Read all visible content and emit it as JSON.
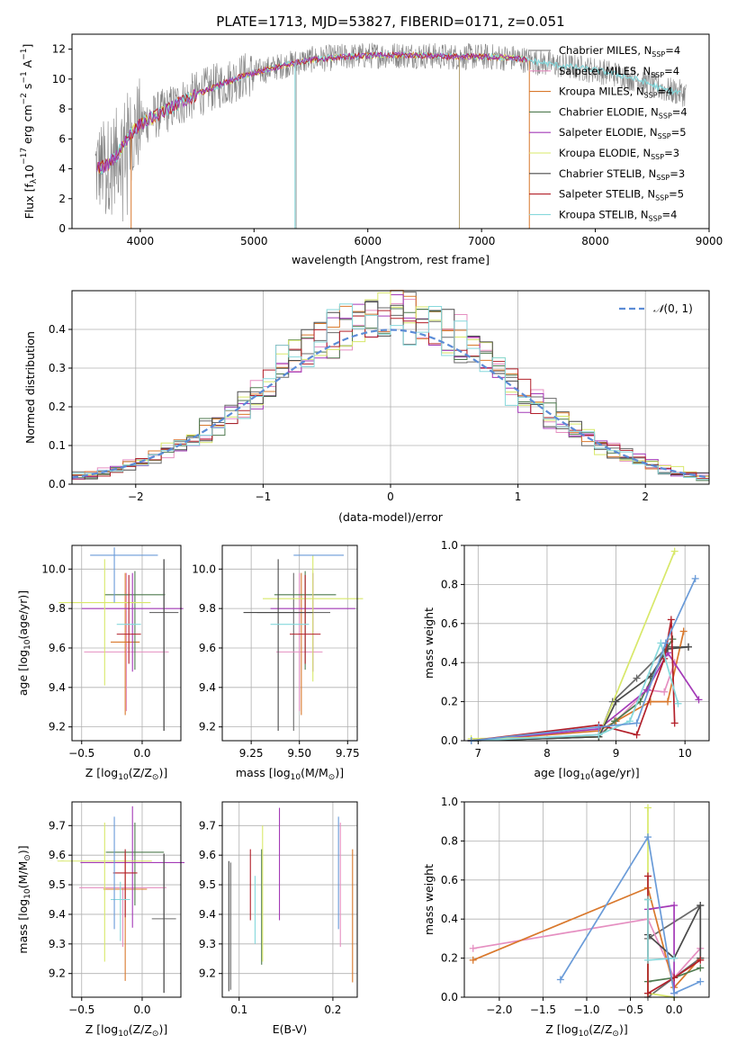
{
  "figure_title": "PLATE=1713, MJD=53827, FIBERID=0171, z=0.051",
  "colors": [
    "#6a6a6a",
    "#e58fc1",
    "#d9782c",
    "#4f7a4f",
    "#a43ab7",
    "#d8e86a",
    "#4a4a4a",
    "#b3202a",
    "#86d8dc"
  ],
  "stelib_colors": [
    "#6a6a6a",
    "#e58fc1",
    "#d9782c",
    "#4f7a4f",
    "#a43ab7",
    "#d8e86a",
    "#4a4a4a",
    "#b3202a",
    "#86d8dc"
  ],
  "chart_data": [
    {
      "id": "spectrum",
      "type": "line",
      "xlabel": "wavelength [Angstrom, rest frame]",
      "ylabel": "Flux [f$_\\lambda$10$^{-17}$ erg cm$^{-2}$ s$^{-1}$ A$^{-1}$]",
      "ylabel_parts": [
        "Flux [f",
        "λ",
        "10",
        "−17",
        " erg cm",
        "−2",
        " s",
        "−1",
        " A",
        "−1",
        "]"
      ],
      "xlim": [
        3400,
        9000
      ],
      "ylim": [
        0,
        13
      ],
      "xticks": [
        4000,
        5000,
        6000,
        7000,
        8000,
        9000
      ],
      "yticks": [
        0,
        2,
        4,
        6,
        8,
        10,
        12
      ],
      "grid": false,
      "legend": "right",
      "legend_entries": [
        {
          "lib": "Chabrier MILES, N",
          "sub": "SSP",
          "n": "=4"
        },
        {
          "lib": "Salpeter MILES, N",
          "sub": "SSP",
          "n": "=4"
        },
        {
          "lib": "Kroupa MILES, N",
          "sub": "SSP",
          "n": "=4"
        },
        {
          "lib": "Chabrier ELODIE, N",
          "sub": "SSP",
          "n": "=4"
        },
        {
          "lib": "Salpeter ELODIE, N",
          "sub": "SSP",
          "n": "=5"
        },
        {
          "lib": "Kroupa ELODIE, N",
          "sub": "SSP",
          "n": "=3"
        },
        {
          "lib": "Chabrier STELIB, N",
          "sub": "SSP",
          "n": "=3"
        },
        {
          "lib": "Salpeter STELIB, N",
          "sub": "SSP",
          "n": "=5"
        },
        {
          "lib": "Kroupa STELIB, N",
          "sub": "SSP",
          "n": "=4"
        }
      ],
      "data_trend": {
        "x": [
          3600,
          3700,
          3800,
          3900,
          4000,
          4100,
          4300,
          4500,
          4700,
          4900,
          5100,
          5300,
          5500,
          5800,
          6100,
          6400,
          6700,
          7000,
          7300,
          7600,
          7800,
          8000,
          8200,
          8400,
          8600,
          8800
        ],
        "y": [
          4.0,
          4.2,
          5.0,
          6.2,
          7.0,
          7.4,
          8.2,
          9.0,
          9.6,
          10.2,
          10.6,
          11.0,
          11.3,
          11.5,
          11.6,
          11.6,
          11.5,
          11.5,
          11.4,
          11.0,
          10.8,
          10.6,
          10.3,
          9.9,
          9.3,
          9.0
        ]
      }
    },
    {
      "id": "residuals",
      "type": "histogram",
      "xlabel": "(data-model)/error",
      "ylabel": "Normed distribution",
      "xlim": [
        -2.5,
        2.5
      ],
      "ylim": [
        0,
        0.5
      ],
      "xticks": [
        -2,
        -1,
        0,
        1,
        2
      ],
      "yticks": [
        0.0,
        0.1,
        0.2,
        0.3,
        0.4
      ],
      "grid": true,
      "legend": "top-right",
      "legend_label_parts": [
        "𝒩",
        "(0, 1)"
      ],
      "bins": [
        -2.5,
        -2.4,
        -2.3,
        -2.2,
        -2.1,
        -2.0,
        -1.9,
        -1.8,
        -1.7,
        -1.6,
        -1.5,
        -1.4,
        -1.3,
        -1.2,
        -1.1,
        -1.0,
        -0.9,
        -0.8,
        -0.7,
        -0.6,
        -0.5,
        -0.4,
        -0.3,
        -0.2,
        -0.1,
        0.0,
        0.1,
        0.2,
        0.3,
        0.4,
        0.5,
        0.6,
        0.7,
        0.8,
        0.9,
        1.0,
        1.1,
        1.2,
        1.3,
        1.4,
        1.5,
        1.6,
        1.7,
        1.8,
        1.9,
        2.0,
        2.1,
        2.2,
        2.3,
        2.4,
        2.5
      ]
    },
    {
      "id": "age_vs_Z",
      "type": "errorbar",
      "xlabel_parts": [
        "Z [log",
        "10",
        "(Z/Z",
        "⊙",
        ")]"
      ],
      "ylabel_parts": [
        "age  [log",
        "10",
        "(age/yr)]"
      ],
      "xlim": [
        -0.58,
        0.32
      ],
      "ylim": [
        9.13,
        10.12
      ],
      "xticks": [
        -0.5,
        0.0
      ],
      "yticks": [
        9.2,
        9.4,
        9.6,
        9.8,
        10.0
      ],
      "grid": true,
      "points": [
        {
          "x": 0.18,
          "y": 9.78,
          "xerr": 0.12,
          "yerr_lo": 0.6,
          "yerr_hi": 0.27
        },
        {
          "x": -0.13,
          "y": 9.58,
          "xerr": 0.35,
          "yerr_lo": 0.3,
          "yerr_hi": 0.4
        },
        {
          "x": -0.14,
          "y": 9.63,
          "xerr": 0.12,
          "yerr_lo": 0.37,
          "yerr_hi": 0.35
        },
        {
          "x": -0.06,
          "y": 9.87,
          "xerr": 0.25,
          "yerr_lo": 0.38,
          "yerr_hi": 0.12
        },
        {
          "x": -0.08,
          "y": 9.8,
          "xerr": 0.42,
          "yerr_lo": 0.32,
          "yerr_hi": 0.18
        },
        {
          "x": -0.31,
          "y": 9.83,
          "xerr": 0.38,
          "yerr_lo": 0.42,
          "yerr_hi": 0.22
        },
        {
          "x": 0.18,
          "y": 9.78,
          "xerr": 0.0,
          "yerr_lo": 0.6,
          "yerr_hi": 0.27
        },
        {
          "x": -0.11,
          "y": 9.67,
          "xerr": 0.1,
          "yerr_lo": 0.15,
          "yerr_hi": 0.3
        },
        {
          "x": -0.11,
          "y": 9.72,
          "xerr": 0.1,
          "yerr_lo": 0.0,
          "yerr_hi": 0.0
        }
      ],
      "extra_points": [
        {
          "x": -0.15,
          "y": 10.07,
          "xerr": 0.28,
          "yerr_lo": 0.0,
          "yerr_hi": 0.0,
          "color": "#6a9bd8"
        },
        {
          "x": -0.23,
          "y": 9.83,
          "xerr": 0.0,
          "yerr_lo": 0.0,
          "yerr_hi": 0.28,
          "color": "#6a9bd8"
        }
      ]
    },
    {
      "id": "age_vs_mass",
      "type": "errorbar",
      "xlabel_parts": [
        "mass [log",
        "10",
        "(M/M",
        "⊙",
        ")]"
      ],
      "xlim": [
        9.1,
        9.8
      ],
      "ylim": [
        9.13,
        10.12
      ],
      "xticks": [
        9.25,
        9.5,
        9.75
      ],
      "yticks": [
        9.2,
        9.4,
        9.6,
        9.8,
        10.0
      ],
      "grid": true,
      "points": [
        {
          "x": 9.47,
          "y": 9.78,
          "xerr": 0.19,
          "yerr_lo": 0.6,
          "yerr_hi": 0.2
        },
        {
          "x": 9.5,
          "y": 9.58,
          "xerr": 0.12,
          "yerr_lo": 0.3,
          "yerr_hi": 0.4
        },
        {
          "x": 9.51,
          "y": 9.63,
          "xerr": 0.0,
          "yerr_lo": 0.37,
          "yerr_hi": 0.35
        },
        {
          "x": 9.53,
          "y": 9.87,
          "xerr": 0.16,
          "yerr_lo": 0.38,
          "yerr_hi": 0.12
        },
        {
          "x": 9.57,
          "y": 9.8,
          "xerr": 0.22,
          "yerr_lo": 0.32,
          "yerr_hi": 0.18
        },
        {
          "x": 9.57,
          "y": 9.85,
          "xerr": 0.26,
          "yerr_lo": 0.42,
          "yerr_hi": 0.22
        },
        {
          "x": 9.39,
          "y": 9.78,
          "xerr": 0.18,
          "yerr_lo": 0.6,
          "yerr_hi": 0.27
        },
        {
          "x": 9.53,
          "y": 9.67,
          "xerr": 0.08,
          "yerr_lo": 0.15,
          "yerr_hi": 0.3
        },
        {
          "x": 9.45,
          "y": 9.72,
          "xerr": 0.1,
          "yerr_lo": 0.0,
          "yerr_hi": 0.0
        }
      ],
      "extra_points": [
        {
          "x": 9.6,
          "y": 10.07,
          "xerr": 0.13,
          "yerr_lo": 0.0,
          "yerr_hi": 0.0,
          "color": "#6a9bd8"
        }
      ]
    },
    {
      "id": "weight_vs_age",
      "type": "line",
      "xlabel_parts": [
        "age  [log",
        "10",
        "(age/yr)]"
      ],
      "ylabel": "mass weight",
      "xlim": [
        6.8,
        10.35
      ],
      "ylim": [
        0,
        1.0
      ],
      "xticks": [
        7,
        8,
        9,
        10
      ],
      "yticks": [
        0.0,
        0.2,
        0.4,
        0.6,
        0.8,
        1.0
      ],
      "grid": true,
      "series": [
        {
          "x": [
            6.9,
            8.75,
            8.95,
            9.3,
            9.75,
            10.05
          ],
          "y": [
            0.0,
            0.02,
            0.2,
            0.32,
            0.48,
            0.48
          ]
        },
        {
          "x": [
            6.9,
            8.75,
            9.0,
            9.45,
            9.7,
            9.85
          ],
          "y": [
            0.0,
            0.03,
            0.1,
            0.26,
            0.25,
            0.4
          ]
        },
        {
          "x": [
            6.9,
            8.75,
            9.0,
            9.5,
            9.75,
            9.98
          ],
          "y": [
            0.0,
            0.05,
            0.1,
            0.2,
            0.2,
            0.56
          ]
        },
        {
          "x": [
            6.9,
            8.75,
            8.98,
            9.35,
            9.7,
            9.82
          ],
          "y": [
            0.0,
            0.02,
            0.1,
            0.2,
            0.45,
            0.52
          ]
        },
        {
          "x": [
            6.9,
            8.75,
            9.45,
            9.75,
            10.2
          ],
          "y": [
            0.0,
            0.06,
            0.26,
            0.45,
            0.21
          ]
        },
        {
          "x": [
            6.9,
            8.75,
            9.85
          ],
          "y": [
            0.01,
            0.02,
            0.97
          ]
        },
        {
          "x": [
            6.9,
            8.75,
            9.0,
            9.5,
            9.75,
            10.05
          ],
          "y": [
            0.0,
            0.02,
            0.2,
            0.33,
            0.47,
            0.48
          ]
        },
        {
          "x": [
            6.9,
            8.75,
            9.3,
            9.7,
            9.8,
            9.85
          ],
          "y": [
            0.0,
            0.08,
            0.03,
            0.42,
            0.62,
            0.09
          ]
        },
        {
          "x": [
            6.9,
            8.75,
            9.2,
            9.65,
            9.9
          ],
          "y": [
            0.0,
            0.03,
            0.1,
            0.5,
            0.19
          ]
        }
      ],
      "extra_series": {
        "x": [
          6.9,
          8.75,
          9.3,
          9.72,
          10.15
        ],
        "y": [
          0.0,
          0.07,
          0.09,
          0.5,
          0.83
        ],
        "color": "#6a9bd8"
      }
    },
    {
      "id": "mass_vs_Z",
      "type": "errorbar",
      "xlabel_parts": [
        "Z [log",
        "10",
        "(Z/Z",
        "⊙",
        ")]"
      ],
      "ylabel_parts": [
        "mass [log",
        "10",
        "(M/M",
        "⊙",
        ")]"
      ],
      "xlim": [
        -0.58,
        0.32
      ],
      "ylim": [
        9.12,
        9.78
      ],
      "xticks": [
        -0.5,
        0.0
      ],
      "yticks": [
        9.2,
        9.3,
        9.4,
        9.5,
        9.6,
        9.7
      ],
      "grid": true,
      "points": [
        {
          "x": 0.18,
          "y": 9.385,
          "xerr": 0.1,
          "yerr_lo": 0.25,
          "yerr_hi": 0.22
        },
        {
          "x": -0.16,
          "y": 9.49,
          "xerr": 0.36,
          "yerr_lo": 0.2,
          "yerr_hi": 0.0
        },
        {
          "x": -0.14,
          "y": 9.485,
          "xerr": 0.18,
          "yerr_lo": 0.31,
          "yerr_hi": 0.12
        },
        {
          "x": -0.06,
          "y": 9.61,
          "xerr": 0.24,
          "yerr_lo": 0.18,
          "yerr_hi": 0.1
        },
        {
          "x": -0.08,
          "y": 9.575,
          "xerr": 0.43,
          "yerr_lo": 0.22,
          "yerr_hi": 0.19
        },
        {
          "x": -0.31,
          "y": 9.58,
          "xerr": 0.39,
          "yerr_lo": 0.34,
          "yerr_hi": 0.13
        },
        {
          "x": 0.18,
          "y": 9.385,
          "xerr": 0.0,
          "yerr_lo": 0.25,
          "yerr_hi": 0.22
        },
        {
          "x": -0.14,
          "y": 9.54,
          "xerr": 0.1,
          "yerr_lo": 0.15,
          "yerr_hi": 0.08
        },
        {
          "x": -0.18,
          "y": 9.45,
          "xerr": 0.08,
          "yerr_lo": 0.14,
          "yerr_hi": 0.06
        }
      ],
      "extra_points": [
        {
          "x": -0.23,
          "y": 9.61,
          "xerr": 0.0,
          "yerr_lo": 0.26,
          "yerr_hi": 0.12,
          "color": "#6a9bd8"
        }
      ]
    },
    {
      "id": "mass_vs_ebv",
      "type": "errorbar",
      "xlabel": "E(B-V)",
      "xlim": [
        0.082,
        0.226
      ],
      "ylim": [
        9.12,
        9.78
      ],
      "xticks": [
        0.1,
        0.2
      ],
      "yticks": [
        9.2,
        9.3,
        9.4,
        9.5,
        9.6,
        9.7
      ],
      "grid": true,
      "points": [
        {
          "x": 0.091,
          "y": 9.375,
          "xerr": 0.0,
          "yerr_lo": 0.23,
          "yerr_hi": 0.2
        },
        {
          "x": 0.208,
          "y": 9.49,
          "xerr": 0.0,
          "yerr_lo": 0.2,
          "yerr_hi": 0.22
        },
        {
          "x": 0.221,
          "y": 9.4,
          "xerr": 0.0,
          "yerr_lo": 0.23,
          "yerr_hi": 0.22
        },
        {
          "x": 0.124,
          "y": 9.42,
          "xerr": 0.0,
          "yerr_lo": 0.19,
          "yerr_hi": 0.2
        },
        {
          "x": 0.143,
          "y": 9.57,
          "xerr": 0.0,
          "yerr_lo": 0.19,
          "yerr_hi": 0.19
        },
        {
          "x": 0.125,
          "y": 9.5,
          "xerr": 0.0,
          "yerr_lo": 0.26,
          "yerr_hi": 0.2
        },
        {
          "x": 0.089,
          "y": 9.36,
          "xerr": 0.0,
          "yerr_lo": 0.22,
          "yerr_hi": 0.22
        },
        {
          "x": 0.112,
          "y": 9.5,
          "xerr": 0.0,
          "yerr_lo": 0.12,
          "yerr_hi": 0.12
        },
        {
          "x": 0.117,
          "y": 9.4,
          "xerr": 0.0,
          "yerr_lo": 0.1,
          "yerr_hi": 0.13
        }
      ],
      "extra_points": [
        {
          "x": 0.206,
          "y": 9.54,
          "xerr": 0.0,
          "yerr_lo": 0.19,
          "yerr_hi": 0.19,
          "color": "#6a9bd8"
        }
      ]
    },
    {
      "id": "weight_vs_Z",
      "type": "line",
      "xlabel_parts": [
        "Z [log",
        "10",
        "(Z/Z",
        "⊙",
        ")]"
      ],
      "ylabel": "mass weight",
      "xlim": [
        -2.4,
        0.4
      ],
      "ylim": [
        0,
        1.0
      ],
      "xticks": [
        -2.0,
        -1.5,
        -1.0,
        -0.5,
        0.0
      ],
      "yticks": [
        0.0,
        0.2,
        0.4,
        0.6,
        0.8,
        1.0
      ],
      "grid": true,
      "series": [
        {
          "x": [
            0.3,
            -0.3,
            -0.3,
            0.3
          ],
          "y": [
            0.47,
            0.3,
            0.0,
            0.2
          ]
        },
        {
          "x": [
            -2.3,
            -0.3,
            0.0,
            0.3
          ],
          "y": [
            0.25,
            0.4,
            0.1,
            0.25
          ]
        },
        {
          "x": [
            -2.3,
            -0.3,
            0.0,
            0.3
          ],
          "y": [
            0.19,
            0.56,
            0.05,
            0.2
          ]
        },
        {
          "x": [
            -0.3,
            -0.3,
            0.0,
            0.3
          ],
          "y": [
            0.5,
            0.08,
            0.1,
            0.15
          ]
        },
        {
          "x": [
            -0.3,
            0.0,
            0.0
          ],
          "y": [
            0.45,
            0.47,
            0.02
          ]
        },
        {
          "x": [
            -0.3,
            -0.3,
            0.0
          ],
          "y": [
            0.97,
            0.02,
            0.0
          ]
        },
        {
          "x": [
            -0.3,
            0.0,
            0.3,
            0.3
          ],
          "y": [
            0.32,
            0.2,
            0.47,
            0.2
          ]
        },
        {
          "x": [
            -0.3,
            -0.3,
            0.0,
            0.3
          ],
          "y": [
            0.62,
            0.02,
            0.1,
            0.19
          ]
        },
        {
          "x": [
            -0.3,
            -0.3,
            0.0
          ],
          "y": [
            0.5,
            0.19,
            0.2
          ]
        }
      ],
      "extra_series": {
        "x": [
          -1.3,
          -0.3,
          0.0,
          0.3
        ],
        "y": [
          0.09,
          0.82,
          0.02,
          0.08
        ],
        "color": "#6a9bd8"
      }
    }
  ]
}
